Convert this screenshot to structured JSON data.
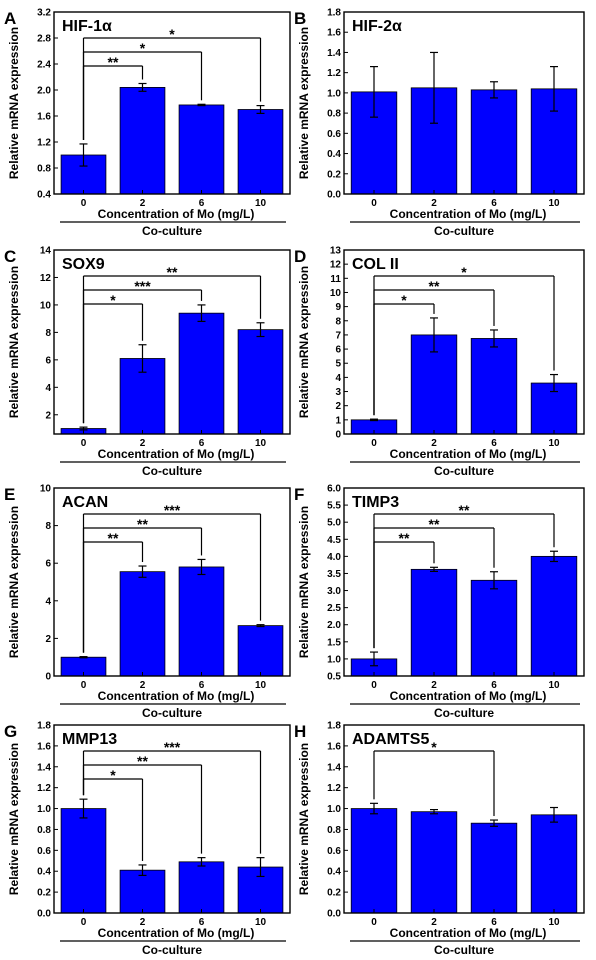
{
  "figure": {
    "ylabel": "Relative mRNA expression",
    "xlabel": "Concentration of Mo (mg/L)",
    "group_label": "Co-culture",
    "bar_color": "#0000ff"
  },
  "chart_data": [
    {
      "type": "bar",
      "letter": "A",
      "title": "HIF-1α",
      "categories": [
        "0",
        "2",
        "6",
        "10"
      ],
      "values": [
        1.0,
        2.04,
        1.77,
        1.7
      ],
      "errors": [
        0.17,
        0.06,
        0.01,
        0.06
      ],
      "ylim": [
        0.4,
        3.2
      ],
      "yticks": [
        "0.4",
        "0.8",
        "1.2",
        "1.6",
        "2.0",
        "2.4",
        "2.8",
        "3.2"
      ],
      "significance": [
        {
          "to": "2",
          "label": "**"
        },
        {
          "to": "6",
          "label": "*"
        },
        {
          "to": "10",
          "label": "*"
        }
      ]
    },
    {
      "type": "bar",
      "letter": "B",
      "title": "HIF-2α",
      "categories": [
        "0",
        "2",
        "6",
        "10"
      ],
      "values": [
        1.01,
        1.05,
        1.03,
        1.04
      ],
      "errors": [
        0.25,
        0.35,
        0.08,
        0.22
      ],
      "ylim": [
        0.0,
        1.8
      ],
      "yticks": [
        "0.0",
        "0.2",
        "0.4",
        "0.6",
        "0.8",
        "1.0",
        "1.2",
        "1.4",
        "1.6",
        "1.8"
      ],
      "significance": []
    },
    {
      "type": "bar",
      "letter": "C",
      "title": "SOX9",
      "categories": [
        "0",
        "2",
        "6",
        "10"
      ],
      "values": [
        1.0,
        6.1,
        9.4,
        8.2
      ],
      "errors": [
        0.1,
        1.0,
        0.6,
        0.5
      ],
      "ylim": [
        0.6,
        14
      ],
      "yticks": [
        "2",
        "4",
        "6",
        "8",
        "10",
        "12",
        "14"
      ],
      "significance": [
        {
          "to": "2",
          "label": "*"
        },
        {
          "to": "6",
          "label": "***"
        },
        {
          "to": "10",
          "label": "**"
        }
      ]
    },
    {
      "type": "bar",
      "letter": "D",
      "title": "COL II",
      "categories": [
        "0",
        "2",
        "6",
        "10"
      ],
      "values": [
        1.0,
        7.0,
        6.75,
        3.6
      ],
      "errors": [
        0.05,
        1.2,
        0.6,
        0.6
      ],
      "ylim": [
        0,
        13
      ],
      "yticks": [
        "0",
        "1",
        "2",
        "3",
        "4",
        "5",
        "6",
        "7",
        "8",
        "9",
        "10",
        "11",
        "12",
        "13"
      ],
      "significance": [
        {
          "to": "2",
          "label": "*"
        },
        {
          "to": "6",
          "label": "**"
        },
        {
          "to": "10",
          "label": "*"
        }
      ]
    },
    {
      "type": "bar",
      "letter": "E",
      "title": "ACAN",
      "categories": [
        "0",
        "2",
        "6",
        "10"
      ],
      "values": [
        1.0,
        5.55,
        5.8,
        2.68
      ],
      "errors": [
        0.03,
        0.3,
        0.4,
        0.05
      ],
      "ylim": [
        0,
        10
      ],
      "yticks": [
        "0",
        "2",
        "4",
        "6",
        "8",
        "10"
      ],
      "significance": [
        {
          "to": "2",
          "label": "**"
        },
        {
          "to": "6",
          "label": "**"
        },
        {
          "to": "10",
          "label": "***"
        }
      ]
    },
    {
      "type": "bar",
      "letter": "F",
      "title": "TIMP3",
      "categories": [
        "0",
        "2",
        "6",
        "10"
      ],
      "values": [
        1.0,
        3.62,
        3.3,
        4.0
      ],
      "errors": [
        0.2,
        0.06,
        0.25,
        0.15
      ],
      "ylim": [
        0.5,
        6.0
      ],
      "yticks": [
        "0.5",
        "1.0",
        "1.5",
        "2.0",
        "2.5",
        "3.0",
        "3.5",
        "4.0",
        "4.5",
        "5.0",
        "5.5",
        "6.0"
      ],
      "significance": [
        {
          "to": "2",
          "label": "**"
        },
        {
          "to": "6",
          "label": "**"
        },
        {
          "to": "10",
          "label": "**"
        }
      ]
    },
    {
      "type": "bar",
      "letter": "G",
      "title": "MMP13",
      "categories": [
        "0",
        "2",
        "6",
        "10"
      ],
      "values": [
        1.0,
        0.41,
        0.49,
        0.44
      ],
      "errors": [
        0.09,
        0.05,
        0.04,
        0.09
      ],
      "ylim": [
        0.0,
        1.8
      ],
      "yticks": [
        "0.0",
        "0.2",
        "0.4",
        "0.6",
        "0.8",
        "1.0",
        "1.2",
        "1.4",
        "1.6",
        "1.8"
      ],
      "significance": [
        {
          "to": "2",
          "label": "*"
        },
        {
          "to": "6",
          "label": "**"
        },
        {
          "to": "10",
          "label": "***"
        }
      ]
    },
    {
      "type": "bar",
      "letter": "H",
      "title": "ADAMTS5",
      "categories": [
        "0",
        "2",
        "6",
        "10"
      ],
      "values": [
        1.0,
        0.97,
        0.86,
        0.94
      ],
      "errors": [
        0.05,
        0.02,
        0.03,
        0.07
      ],
      "ylim": [
        0.0,
        1.8
      ],
      "yticks": [
        "0.0",
        "0.2",
        "0.4",
        "0.6",
        "0.8",
        "1.0",
        "1.2",
        "1.4",
        "1.6",
        "1.8"
      ],
      "significance": [
        {
          "to": "6",
          "label": "*"
        }
      ]
    }
  ]
}
